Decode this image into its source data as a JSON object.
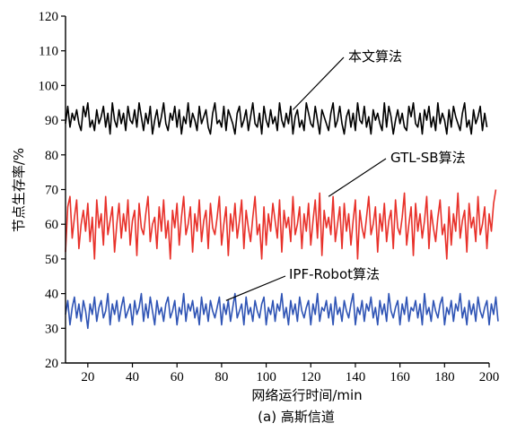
{
  "chart_data": {
    "type": "line",
    "title": "",
    "caption": "(a) 高斯信道",
    "xlabel": "网络运行时间/min",
    "ylabel": "节点生存率/%",
    "xlim": [
      10,
      200
    ],
    "ylim": [
      20,
      120
    ],
    "xticks": [
      20,
      40,
      60,
      80,
      100,
      120,
      140,
      160,
      180,
      200
    ],
    "yticks": [
      20,
      30,
      40,
      50,
      60,
      70,
      80,
      90,
      100,
      110,
      120
    ],
    "grid": false,
    "legend": "none",
    "x_start": 10,
    "x_step": 1,
    "series": [
      {
        "name": "本文算法",
        "color": "#000000",
        "values": [
          89,
          94,
          88,
          92,
          90,
          93,
          89,
          87,
          94,
          91,
          95,
          88,
          90,
          87,
          93,
          89,
          91,
          94,
          88,
          92,
          86,
          95,
          90,
          88,
          93,
          89,
          92,
          87,
          94,
          90,
          89,
          93,
          88,
          95,
          91,
          87,
          92,
          89,
          94,
          86,
          90,
          93,
          88,
          91,
          95,
          89,
          87,
          92,
          90,
          94,
          88,
          93,
          86,
          91,
          89,
          95,
          88,
          92,
          90,
          87,
          94,
          89,
          91,
          93,
          88,
          86,
          92,
          95,
          89,
          90,
          88,
          94,
          87,
          93,
          91,
          89,
          86,
          92,
          94,
          88,
          90,
          93,
          87,
          91,
          95,
          89,
          88,
          92,
          86,
          94,
          90,
          88,
          93,
          89,
          91,
          87,
          95,
          90,
          88,
          92,
          89,
          94,
          86,
          91,
          93,
          88,
          90,
          87,
          95,
          92,
          89,
          88,
          94,
          90,
          86,
          93,
          91,
          89,
          87,
          92,
          95,
          88,
          90,
          94,
          89,
          86,
          91,
          93,
          88,
          92,
          87,
          95,
          90,
          89,
          94,
          88,
          91,
          86,
          93,
          90,
          92,
          89,
          87,
          95,
          88,
          94,
          91,
          86,
          90,
          93,
          89,
          92,
          88,
          87,
          94,
          91,
          95,
          89,
          88,
          92,
          86,
          93,
          90,
          94,
          88,
          91,
          87,
          95,
          89,
          92,
          90,
          86,
          93,
          88,
          94,
          91,
          89,
          87,
          92,
          95,
          88,
          90,
          86,
          93,
          89,
          91,
          94,
          87,
          92,
          88
        ]
      },
      {
        "name": "GTL-SB算法",
        "color": "#e8312a",
        "values": [
          52,
          65,
          68,
          56,
          62,
          67,
          53,
          60,
          64,
          58,
          66,
          55,
          62,
          50,
          67,
          59,
          63,
          54,
          68,
          57,
          61,
          65,
          52,
          60,
          66,
          56,
          63,
          58,
          67,
          54,
          61,
          64,
          51,
          66,
          59,
          57,
          63,
          68,
          55,
          60,
          62,
          53,
          65,
          58,
          67,
          56,
          61,
          50,
          64,
          59,
          66,
          54,
          62,
          68,
          57,
          60,
          65,
          52,
          63,
          58,
          67,
          55,
          61,
          64,
          53,
          66,
          59,
          57,
          62,
          68,
          54,
          60,
          65,
          51,
          63,
          58,
          66,
          56,
          61,
          67,
          53,
          64,
          59,
          55,
          62,
          68,
          57,
          60,
          50,
          65,
          54,
          63,
          58,
          66,
          61,
          56,
          67,
          52,
          64,
          59,
          62,
          55,
          68,
          57,
          60,
          65,
          53,
          63,
          58,
          66,
          54,
          61,
          67,
          56,
          69,
          51,
          64,
          59,
          62,
          57,
          68,
          55,
          60,
          65,
          53,
          66,
          58,
          63,
          54,
          61,
          67,
          50,
          64,
          59,
          56,
          62,
          68,
          57,
          60,
          65,
          52,
          63,
          58,
          66,
          55,
          61,
          64,
          53,
          67,
          59,
          57,
          62,
          69,
          54,
          60,
          65,
          51,
          66,
          58,
          63,
          56,
          61,
          68,
          53,
          64,
          59,
          55,
          62,
          67,
          57,
          60,
          50,
          65,
          54,
          63,
          58,
          69,
          56,
          61,
          64,
          52,
          66,
          59,
          62,
          55,
          68,
          57,
          60,
          65,
          53,
          63,
          58,
          66,
          70
        ]
      },
      {
        "name": "IPF-Robot算法",
        "color": "#2f54b5",
        "values": [
          34,
          38,
          31,
          36,
          39,
          33,
          37,
          32,
          38,
          35,
          30,
          37,
          34,
          39,
          32,
          36,
          38,
          33,
          35,
          40,
          31,
          37,
          34,
          38,
          32,
          36,
          39,
          33,
          35,
          37,
          31,
          38,
          34,
          36,
          40,
          32,
          37,
          33,
          39,
          35,
          31,
          38,
          34,
          36,
          32,
          37,
          39,
          33,
          35,
          38,
          31,
          36,
          34,
          40,
          32,
          37,
          35,
          38,
          33,
          36,
          31,
          39,
          34,
          37,
          32,
          38,
          35,
          33,
          36,
          39,
          31,
          37,
          34,
          38,
          32,
          36,
          40,
          33,
          35,
          37,
          31,
          39,
          34,
          36,
          32,
          38,
          35,
          33,
          37,
          39,
          31,
          36,
          34,
          38,
          32,
          37,
          35,
          40,
          33,
          36,
          31,
          38,
          34,
          37,
          32,
          39,
          35,
          33,
          36,
          38,
          31,
          37,
          34,
          40,
          32,
          36,
          35,
          38,
          33,
          37,
          31,
          39,
          34,
          36,
          32,
          38,
          35,
          33,
          37,
          40,
          31,
          36,
          34,
          38,
          32,
          37,
          35,
          39,
          33,
          36,
          31,
          38,
          34,
          37,
          32,
          40,
          35,
          33,
          36,
          38,
          31,
          37,
          34,
          39,
          32,
          36,
          35,
          38,
          33,
          37,
          31,
          40,
          34,
          36,
          32,
          38,
          35,
          33,
          37,
          39,
          31,
          36,
          34,
          38,
          32,
          37,
          35,
          40,
          33,
          36,
          31,
          38,
          34,
          37,
          32,
          39,
          35,
          33,
          36,
          38,
          31,
          37,
          34,
          39,
          32
        ]
      }
    ],
    "annotations": [
      {
        "text": "本文算法",
        "series_index": 0,
        "x": 112,
        "y": 93
      },
      {
        "text": "GTL-SB算法",
        "series_index": 1,
        "x": 128,
        "y": 68
      },
      {
        "text": "IPF-Robot算法",
        "series_index": 2,
        "x": 82,
        "y": 38
      }
    ]
  }
}
